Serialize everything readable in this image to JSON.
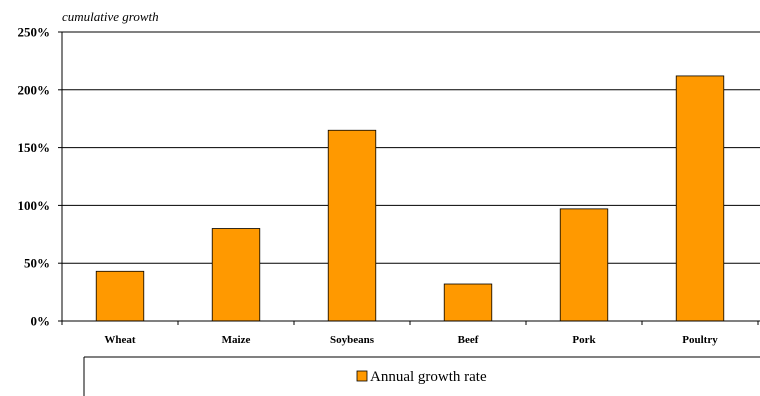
{
  "chart_data": {
    "type": "bar",
    "ylabel": "cumulative growth",
    "xlabel": "",
    "categories": [
      "Wheat",
      "Maize",
      "Soybeans",
      "Beef",
      "Pork",
      "Poultry"
    ],
    "series": [
      {
        "name": "Annual growth rate",
        "values": [
          43,
          80,
          165,
          32,
          97,
          212
        ],
        "color": "#ff9900"
      }
    ],
    "ylim": [
      0,
      250
    ],
    "yticks": [
      0,
      50,
      100,
      150,
      200,
      250
    ],
    "ytick_labels": [
      "0%",
      "50%",
      "100%",
      "150%",
      "200%",
      "250%"
    ],
    "grid": true,
    "legend_position": "bottom"
  }
}
